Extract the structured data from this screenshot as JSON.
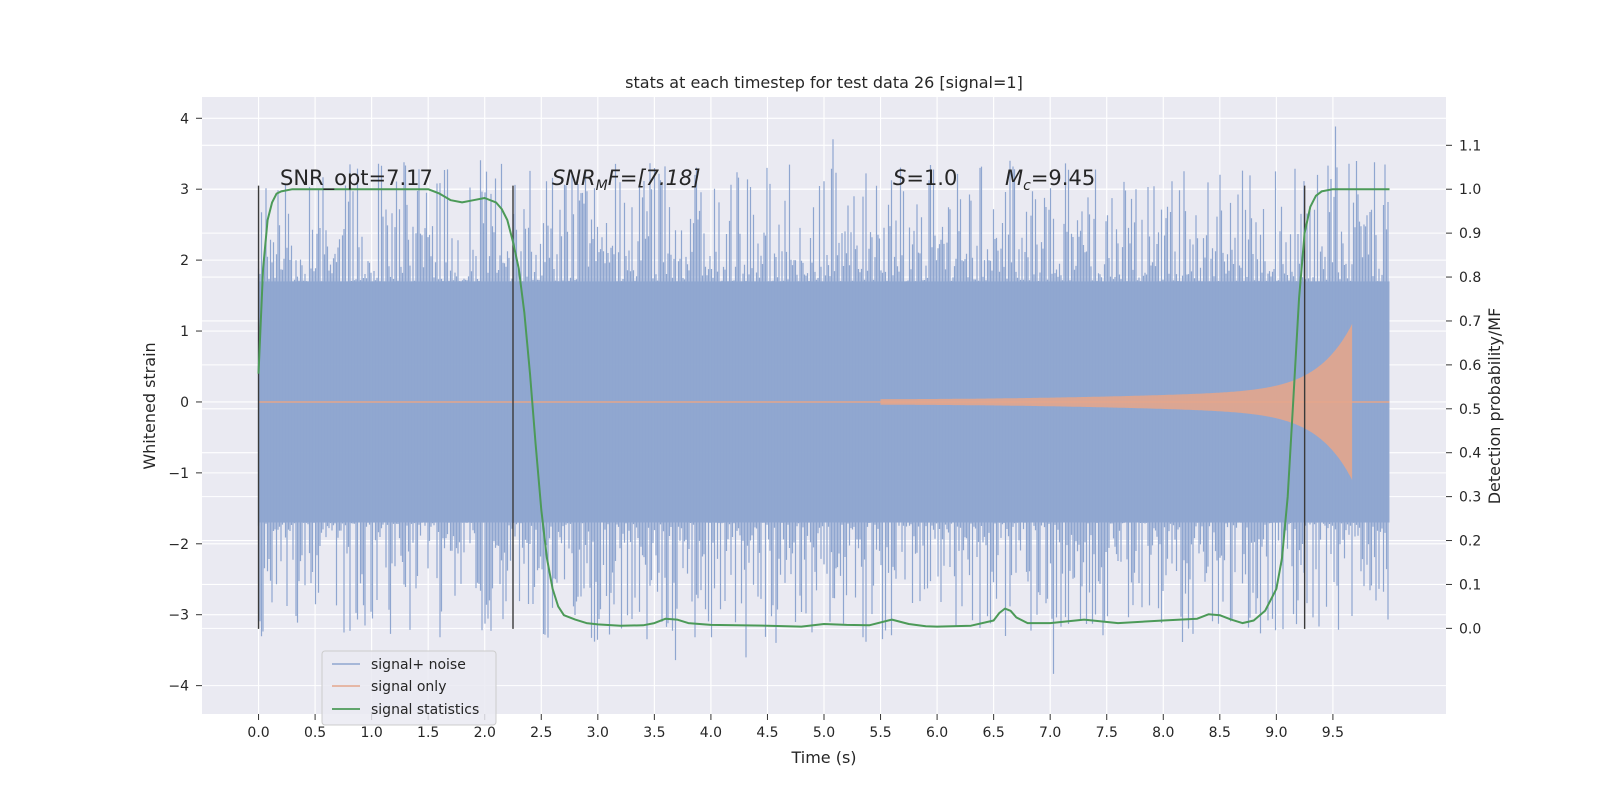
{
  "chart_data": {
    "type": "line",
    "title": "stats at each timestep for test data 26 [signal=1]",
    "xlabel": "Time (s)",
    "ylabel_left": "Whitened strain",
    "ylabel_right": "Detection probability/MF",
    "xlim": [
      -0.5,
      10.5
    ],
    "ylim_left": [
      -4.4,
      4.3
    ],
    "ylim_right": [
      -0.195,
      1.21
    ],
    "x_ticks": [
      "0.0",
      "0.5",
      "1.0",
      "1.5",
      "2.0",
      "2.5",
      "3.0",
      "3.5",
      "4.0",
      "4.5",
      "5.0",
      "5.5",
      "6.0",
      "6.5",
      "7.0",
      "7.5",
      "8.0",
      "8.5",
      "9.0",
      "9.5"
    ],
    "x_tick_values": [
      0.0,
      0.5,
      1.0,
      1.5,
      2.0,
      2.5,
      3.0,
      3.5,
      4.0,
      4.5,
      5.0,
      5.5,
      6.0,
      6.5,
      7.0,
      7.5,
      8.0,
      8.5,
      9.0,
      9.5
    ],
    "y_left_ticks": [
      "4",
      "3",
      "2",
      "1",
      "0",
      "−1",
      "−2",
      "−3",
      "−4"
    ],
    "y_left_tick_values": [
      4,
      3,
      2,
      1,
      0,
      -1,
      -2,
      -3,
      -4
    ],
    "y_right_ticks": [
      "1.1",
      "1.0",
      "0.9",
      "0.8",
      "0.7",
      "0.6",
      "0.5",
      "0.4",
      "0.3",
      "0.2",
      "0.1",
      "0.0"
    ],
    "y_right_tick_values": [
      1.1,
      1.0,
      0.9,
      0.8,
      0.7,
      0.6,
      0.5,
      0.4,
      0.3,
      0.2,
      0.1,
      0.0
    ],
    "grid": true,
    "legend_position": "lower-left",
    "legend": [
      "signal+ noise",
      "signal only",
      "signal statistics"
    ],
    "annotations": {
      "snr_opt": "SNR_opt=7.17",
      "snr_mf_main": "SNR",
      "snr_mf_sub": "M",
      "snr_mf_rest": "F=[7.18]",
      "s_main": "S",
      "s_rest": "=1.0",
      "mc_main": "M",
      "mc_sub": "c",
      "mc_rest": "=9.45"
    },
    "vertical_markers_x": [
      0.0,
      2.25,
      9.25
    ],
    "vertical_markers_range": [
      -3.2,
      3.05
    ],
    "series": [
      {
        "name": "signal+ noise",
        "color": "#8fa6d0",
        "axis": "left",
        "x_range": [
          0.0,
          10.0
        ],
        "band_upper": 1.7,
        "band_lower": -1.7,
        "spike_max": 3.9,
        "spike_min": -4.05
      },
      {
        "name": "signal only",
        "color": "#e3a68c",
        "axis": "left",
        "chirp_start": 5.5,
        "chirp_end": 9.67,
        "peak_amplitude": 1.1
      },
      {
        "name": "signal statistics",
        "color": "#4c9a58",
        "axis": "right",
        "x": [
          0.0,
          0.04,
          0.08,
          0.12,
          0.16,
          0.2,
          0.3,
          0.5,
          0.8,
          1.0,
          1.3,
          1.5,
          1.6,
          1.7,
          1.8,
          1.9,
          2.0,
          2.1,
          2.15,
          2.2,
          2.25,
          2.3,
          2.35,
          2.4,
          2.45,
          2.5,
          2.55,
          2.6,
          2.65,
          2.7,
          2.8,
          2.9,
          3.0,
          3.2,
          3.4,
          3.5,
          3.6,
          3.7,
          3.8,
          4.0,
          4.5,
          4.8,
          5.0,
          5.2,
          5.4,
          5.6,
          5.75,
          5.9,
          6.0,
          6.3,
          6.5,
          6.55,
          6.6,
          6.65,
          6.7,
          6.8,
          7.0,
          7.3,
          7.6,
          8.0,
          8.3,
          8.4,
          8.5,
          8.6,
          8.7,
          8.8,
          8.9,
          9.0,
          9.05,
          9.1,
          9.15,
          9.2,
          9.25,
          9.3,
          9.35,
          9.4,
          9.5,
          9.6,
          9.8,
          10.0
        ],
        "values": [
          0.58,
          0.82,
          0.93,
          0.97,
          0.99,
          0.995,
          1.0,
          1.0,
          1.0,
          1.0,
          1.0,
          1.0,
          0.99,
          0.975,
          0.97,
          0.975,
          0.98,
          0.97,
          0.955,
          0.93,
          0.88,
          0.82,
          0.72,
          0.58,
          0.42,
          0.27,
          0.16,
          0.09,
          0.05,
          0.03,
          0.02,
          0.012,
          0.009,
          0.006,
          0.007,
          0.012,
          0.022,
          0.02,
          0.012,
          0.008,
          0.006,
          0.004,
          0.01,
          0.008,
          0.007,
          0.02,
          0.01,
          0.005,
          0.004,
          0.006,
          0.018,
          0.035,
          0.045,
          0.04,
          0.025,
          0.012,
          0.012,
          0.02,
          0.012,
          0.018,
          0.022,
          0.032,
          0.03,
          0.02,
          0.012,
          0.018,
          0.04,
          0.09,
          0.16,
          0.3,
          0.52,
          0.75,
          0.9,
          0.96,
          0.985,
          0.995,
          1.0,
          1.0,
          1.0,
          1.0
        ]
      }
    ]
  }
}
